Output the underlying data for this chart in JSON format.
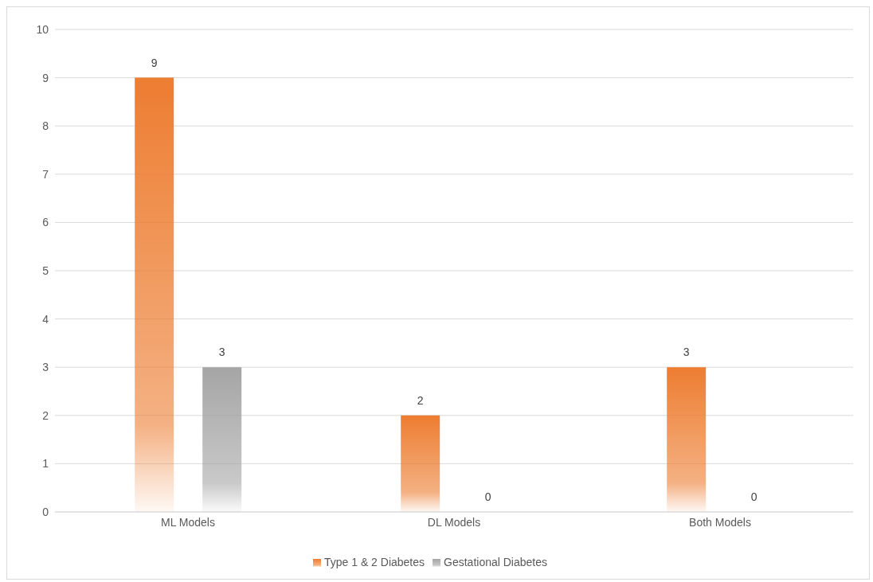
{
  "chart_data": {
    "type": "bar",
    "categories": [
      "ML Models",
      "DL Models",
      "Both Models"
    ],
    "series": [
      {
        "name": "Type 1 & 2 Diabetes",
        "color": "#ed7d31",
        "values": [
          9,
          2,
          3
        ]
      },
      {
        "name": "Gestational Diabetes",
        "color": "#a5a5a5",
        "values": [
          3,
          0,
          0
        ]
      }
    ],
    "ylim": [
      0,
      10
    ],
    "yticks": [
      0,
      1,
      2,
      3,
      4,
      5,
      6,
      7,
      8,
      9,
      10
    ],
    "grid": "y",
    "legend": "bottom",
    "data_labels": true
  }
}
